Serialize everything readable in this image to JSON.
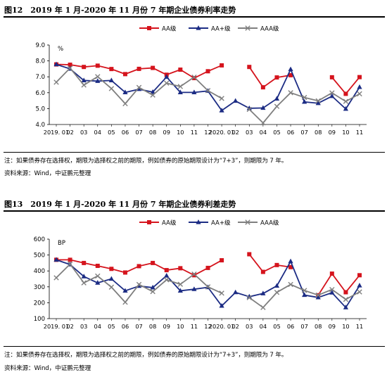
{
  "colors": {
    "aa": "#D5141D",
    "aa_plus": "#1C2C84",
    "aaa": "#7F7F7F"
  },
  "charts": [
    {
      "title": "图12　2019 年 1 月-2020 年 11 月份 7 年期企业债券利率走势",
      "note": "注：如果债券存在选择权，期限为选择权之前的期限，例如债券的原始期限设计为“7+3”，则期限为 7 年。",
      "source": "资料来源：Wind，中证鹏元整理"
    },
    {
      "title": "图13　2019 年 1 月-2020 年 11 月份 7 年期企业债券利差走势",
      "note": "注：如果债券存在选择权，期限为选择权之前的期限，例如债券的原始期限设计为“7+3”，则期限为 7 年。",
      "source": "资料来源：Wind，中证鹏元整理"
    }
  ],
  "chart_data": [
    {
      "type": "line",
      "unit_label": "%",
      "ylim": [
        4.0,
        9.0
      ],
      "yticks": [
        "4.0",
        "5.0",
        "6.0",
        "7.0",
        "8.0",
        "9.0"
      ],
      "x_labels": [
        "2019. 01",
        "02",
        "03",
        "04",
        "05",
        "06",
        "07",
        "08",
        "09",
        "10",
        "11",
        "12",
        "2020. 01",
        "02",
        "03",
        "04",
        "05",
        "06",
        "07",
        "08",
        "09",
        "10",
        "11"
      ],
      "legend_position": "top",
      "series": [
        {
          "name": "AA级",
          "color_key": "aa",
          "marker": "square",
          "values": [
            7.78,
            7.76,
            7.62,
            7.7,
            7.49,
            7.17,
            7.5,
            7.56,
            7.13,
            7.45,
            6.92,
            7.35,
            7.72,
            null,
            7.62,
            6.34,
            6.96,
            7.1,
            null,
            null,
            6.97,
            5.93,
            6.98
          ]
        },
        {
          "name": "AA+级",
          "color_key": "aa_plus",
          "marker": "triangle",
          "values": [
            7.78,
            7.5,
            6.77,
            6.73,
            6.77,
            6.02,
            6.22,
            6.04,
            6.99,
            6.02,
            6.02,
            6.11,
            4.88,
            5.48,
            5.02,
            5.04,
            5.62,
            7.47,
            5.42,
            5.34,
            5.78,
            4.98,
            6.35
          ]
        },
        {
          "name": "AAA级",
          "color_key": "aaa",
          "marker": "cross",
          "values": [
            6.66,
            7.55,
            6.48,
            7.01,
            6.26,
            5.31,
            6.33,
            5.85,
            6.6,
            6.39,
            6.98,
            6.13,
            5.64,
            null,
            4.95,
            4.1,
            5.14,
            6.0,
            5.7,
            5.49,
            5.99,
            5.45,
            5.93
          ]
        }
      ]
    },
    {
      "type": "line",
      "unit_label": "BP",
      "ylim": [
        100,
        600
      ],
      "yticks": [
        "100",
        "200",
        "300",
        "400",
        "500",
        "600"
      ],
      "x_labels": [
        "2019. 01",
        "02",
        "03",
        "04",
        "05",
        "06",
        "07",
        "08",
        "09",
        "10",
        "11",
        "12",
        "2020. 01",
        "02",
        "03",
        "04",
        "05",
        "06",
        "07",
        "08",
        "09",
        "10",
        "11"
      ],
      "legend_position": "top",
      "series": [
        {
          "name": "AA级",
          "color_key": "aa",
          "marker": "square",
          "values": [
            470,
            470,
            450,
            432,
            413,
            390,
            430,
            450,
            405,
            417,
            373,
            419,
            467,
            null,
            505,
            394,
            437,
            424,
            null,
            247,
            383,
            266,
            373
          ]
        },
        {
          "name": "AA+级",
          "color_key": "aa_plus",
          "marker": "triangle",
          "values": [
            470,
            440,
            365,
            325,
            350,
            275,
            305,
            295,
            370,
            275,
            285,
            297,
            180,
            265,
            238,
            258,
            306,
            460,
            248,
            233,
            263,
            170,
            308
          ]
        },
        {
          "name": "AAA级",
          "color_key": "aaa",
          "marker": "cross",
          "values": [
            357,
            443,
            325,
            368,
            298,
            203,
            315,
            270,
            344,
            316,
            380,
            300,
            260,
            null,
            232,
            170,
            265,
            315,
            277,
            248,
            283,
            221,
            268
          ]
        }
      ]
    }
  ]
}
